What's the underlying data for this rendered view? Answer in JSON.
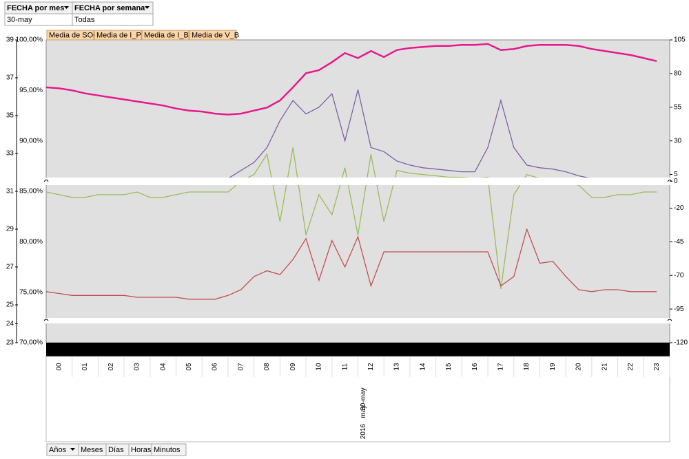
{
  "filters": [
    {
      "label": "FECHA por mes",
      "value": "30-may"
    },
    {
      "label": "FECHA por semana",
      "value": "Todas"
    }
  ],
  "time_buttons": [
    "Años",
    "Meses",
    "Días",
    "Horas",
    "Minutos"
  ],
  "chart_data": {
    "type": "line",
    "x": [
      0,
      0.5,
      1,
      1.5,
      2,
      2.5,
      3,
      3.5,
      4,
      4.5,
      5,
      5.5,
      6,
      6.5,
      7,
      7.5,
      8,
      8.5,
      9,
      9.5,
      10,
      10.5,
      11,
      11.5,
      12,
      12.5,
      13,
      13.5,
      14,
      14.5,
      15,
      15.5,
      16,
      16.5,
      17,
      17.5,
      18,
      18.5,
      19,
      19.5,
      20,
      20.5,
      21,
      21.5,
      22,
      22.5,
      23,
      23.5
    ],
    "xlim": [
      0,
      24
    ],
    "xticks": [
      {
        "value": 0.5,
        "label": "00"
      },
      {
        "value": 1.5,
        "label": "01"
      },
      {
        "value": 2.5,
        "label": "02"
      },
      {
        "value": 3.5,
        "label": "03"
      },
      {
        "value": 4.5,
        "label": "04"
      },
      {
        "value": 5.5,
        "label": "05"
      },
      {
        "value": 6.5,
        "label": "06"
      },
      {
        "value": 7.5,
        "label": "07"
      },
      {
        "value": 8.5,
        "label": "08"
      },
      {
        "value": 9.5,
        "label": "09"
      },
      {
        "value": 10.5,
        "label": "10"
      },
      {
        "value": 11.5,
        "label": "11"
      },
      {
        "value": 12.5,
        "label": "12"
      },
      {
        "value": 13.5,
        "label": "13"
      },
      {
        "value": 14.5,
        "label": "14"
      },
      {
        "value": 15.5,
        "label": "15"
      },
      {
        "value": 16.5,
        "label": "16"
      },
      {
        "value": 17.5,
        "label": "17"
      },
      {
        "value": 18.5,
        "label": "18"
      },
      {
        "value": 19.5,
        "label": "19"
      },
      {
        "value": 20.5,
        "label": "20"
      },
      {
        "value": 21.5,
        "label": "21"
      },
      {
        "value": 22.5,
        "label": "22"
      },
      {
        "value": 23.5,
        "label": "23"
      }
    ],
    "x_group_labels": {
      "day": "30-may",
      "month": "may",
      "year": "2016"
    },
    "ylim": [
      70,
      100
    ],
    "yticks": [
      {
        "value": 70,
        "label": "70,00%"
      },
      {
        "value": 75,
        "label": "75,00%"
      },
      {
        "value": 80,
        "label": "80,00%"
      },
      {
        "value": 85,
        "label": "85,00%"
      },
      {
        "value": 90,
        "label": "90,00%"
      },
      {
        "value": 95,
        "label": "95,00%"
      },
      {
        "value": 100,
        "label": "100,00%"
      }
    ],
    "y2lim": [
      -120,
      105
    ],
    "y2ticks": [
      -120,
      -95,
      -70,
      -45,
      -20,
      0,
      5,
      30,
      55,
      80,
      105
    ],
    "y3lim": [
      23,
      39
    ],
    "y3ticks": [
      23,
      24,
      25,
      27,
      29,
      31,
      33,
      35,
      37,
      39
    ],
    "grid": true,
    "series": [
      {
        "name": "Media de SOC",
        "color": "#e6198c",
        "axis": "y",
        "values": [
          95.3,
          95.2,
          95.0,
          94.7,
          94.5,
          94.3,
          94.1,
          93.9,
          93.7,
          93.5,
          93.2,
          93.0,
          92.9,
          92.7,
          92.6,
          92.7,
          93.0,
          93.3,
          94.0,
          95.3,
          96.7,
          97.0,
          97.8,
          98.7,
          98.2,
          98.9,
          98.3,
          99.0,
          99.2,
          99.3,
          99.4,
          99.4,
          99.5,
          99.5,
          99.6,
          99.0,
          99.1,
          99.4,
          99.5,
          99.5,
          99.5,
          99.4,
          99.1,
          98.9,
          98.7,
          98.5,
          98.2,
          97.9
        ]
      },
      {
        "name": "Media de I_P",
        "color": "#7f5fa6",
        "axis": "y2",
        "values": [
          null,
          null,
          null,
          null,
          null,
          null,
          null,
          null,
          null,
          null,
          null,
          null,
          null,
          null,
          2,
          8,
          14,
          25,
          45,
          60,
          50,
          55,
          65,
          30,
          68,
          25,
          22,
          15,
          12,
          10,
          9,
          8,
          7,
          7,
          25,
          60,
          25,
          12,
          10,
          9,
          7,
          4,
          2,
          null,
          null,
          null,
          null,
          null
        ]
      },
      {
        "name": "Media de I_B",
        "color": "#9bbb59",
        "axis": "y2",
        "values": [
          -8,
          -10,
          -12,
          -12,
          -10,
          -10,
          -10,
          -8,
          -12,
          -12,
          -10,
          -8,
          -8,
          -8,
          -8,
          0,
          5,
          20,
          -30,
          25,
          -40,
          -10,
          -25,
          10,
          -40,
          20,
          -30,
          8,
          6,
          5,
          4,
          3,
          3,
          2,
          3,
          -80,
          -10,
          5,
          2,
          1,
          0,
          -3,
          -12,
          -12,
          -10,
          -10,
          -8,
          -8
        ]
      },
      {
        "name": "Media de V_B",
        "color": "#c0504d",
        "axis": "y3",
        "values": [
          25.7,
          25.6,
          25.5,
          25.5,
          25.5,
          25.5,
          25.5,
          25.4,
          25.4,
          25.4,
          25.4,
          25.3,
          25.3,
          25.3,
          25.5,
          25.8,
          26.5,
          26.8,
          26.6,
          27.4,
          28.5,
          26.3,
          28.4,
          27.0,
          28.6,
          26.0,
          27.8,
          27.8,
          27.8,
          27.8,
          27.8,
          27.8,
          27.8,
          27.8,
          27.8,
          26.0,
          26.5,
          29.0,
          27.2,
          27.3,
          26.5,
          25.8,
          25.7,
          25.8,
          25.8,
          25.7,
          25.7,
          25.7
        ]
      }
    ]
  }
}
